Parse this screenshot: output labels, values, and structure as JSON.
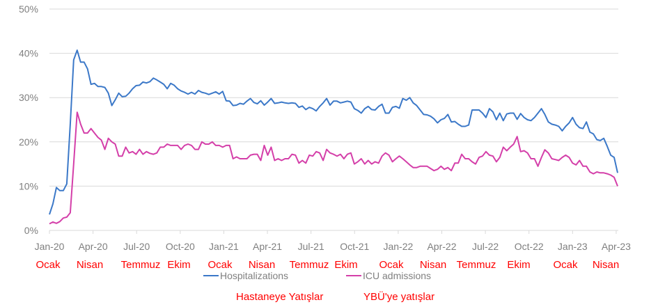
{
  "chart_data": {
    "type": "line",
    "title": "",
    "xlabel": "",
    "ylabel": "",
    "ylim": [
      0,
      50
    ],
    "y_ticks": [
      "0%",
      "10%",
      "20%",
      "30%",
      "40%",
      "50%"
    ],
    "y_tick_values": [
      0,
      10,
      20,
      30,
      40,
      50
    ],
    "x_ticks": [
      "Jan-20",
      "Apr-20",
      "Jul-20",
      "Oct-20",
      "Jan-21",
      "Apr-21",
      "Jul-21",
      "Oct-21",
      "Jan-22",
      "Apr-22",
      "Jul-22",
      "Oct-22",
      "Jan-23",
      "Apr-23"
    ],
    "x_range_months_from_jan20": [
      0,
      39.1
    ],
    "grid": true,
    "legend_position": "bottom",
    "series": [
      {
        "name": "Hospitalizations",
        "color": "#3b78c8",
        "values": [
          3.6,
          6,
          9.7,
          9,
          9,
          10.5,
          24,
          38.5,
          40.7,
          38,
          38,
          36.5,
          33,
          33.2,
          32.5,
          32.5,
          32.3,
          31,
          28.2,
          29.5,
          31,
          30.2,
          30.3,
          31,
          32,
          32.7,
          32.8,
          33.5,
          33.3,
          33.6,
          34.4,
          34,
          33.5,
          33,
          32,
          33.2,
          32.8,
          32,
          31.5,
          31.2,
          30.8,
          31.2,
          30.8,
          31.6,
          31.2,
          31,
          30.7,
          31,
          31.3,
          30.8,
          31.4,
          29.3,
          29.2,
          28.2,
          28.3,
          28.7,
          28.5,
          29.2,
          29.8,
          28.9,
          28.6,
          29.3,
          28.3,
          29,
          29.8,
          28.7,
          28.8,
          29,
          28.8,
          28.7,
          28.8,
          28.7,
          27.8,
          28.1,
          27.3,
          27.8,
          27.5,
          27,
          28,
          28.8,
          29.8,
          28.3,
          29.2,
          29.2,
          28.8,
          29,
          29.2,
          29,
          27.5,
          27.1,
          26.5,
          27.5,
          28,
          27.3,
          27.2,
          28,
          28.5,
          26.5,
          26.5,
          27.8,
          28,
          27.6,
          29.8,
          29.4,
          30,
          28.8,
          28.2,
          27.2,
          26.2,
          26.1,
          25.8,
          25.2,
          24.3,
          25,
          25.3,
          26.2,
          24.5,
          24.6,
          24,
          23.5,
          23.5,
          23.8,
          27.2,
          27.2,
          27.2,
          26.5,
          25.5,
          27.5,
          26.8,
          25,
          26.5,
          24.8,
          26.3,
          26.5,
          26.5,
          25.1,
          26.4,
          25.5,
          25,
          24.8,
          25.5,
          26.5,
          27.5,
          26.2,
          24.5,
          24,
          23.8,
          23.5,
          22.5,
          23.5,
          24.3,
          25.5,
          24,
          23.2,
          23,
          24.5,
          22.2,
          21.8,
          20.5,
          20.3,
          20.8,
          19,
          17,
          16.5,
          13
        ]
      },
      {
        "name": "ICU admissions",
        "color": "#d43fa9",
        "values": [
          1.5,
          1.9,
          1.6,
          2,
          2.8,
          3,
          4,
          15,
          26.7,
          24,
          22,
          22,
          23,
          22,
          21,
          20.4,
          18.3,
          20.8,
          20,
          19.5,
          16.8,
          16.8,
          18.8,
          17.5,
          17.8,
          17.2,
          18.3,
          17.2,
          17.8,
          17.4,
          17.2,
          17.5,
          18.8,
          18.8,
          19.5,
          19.2,
          19.2,
          19.2,
          18.3,
          19.2,
          19.5,
          19.2,
          18.3,
          18.3,
          20,
          19.5,
          19.5,
          20,
          19.2,
          19.2,
          18.8,
          19.2,
          19.2,
          16.2,
          16.6,
          16.2,
          16.2,
          16.2,
          17,
          17.2,
          17.2,
          15.8,
          19.2,
          17,
          18.8,
          15.8,
          16.2,
          15.8,
          16.2,
          16.2,
          17.2,
          17,
          15.2,
          15.8,
          15.2,
          17,
          16.8,
          17.8,
          17.5,
          15.8,
          18.3,
          17.5,
          17.2,
          16.8,
          17.2,
          16.2,
          17.2,
          17.5,
          15,
          15.5,
          16.2,
          15,
          15.8,
          15,
          15.5,
          15.2,
          16.8,
          17.5,
          17,
          15.5,
          16.2,
          16.8,
          16.2,
          15.5,
          14.8,
          14.2,
          14.2,
          14.5,
          14.5,
          14.5,
          14,
          13.5,
          13.8,
          14.5,
          13.8,
          14.2,
          13.5,
          15.2,
          15.2,
          17.2,
          16.2,
          16.2,
          15.5,
          15,
          16.5,
          16.8,
          17.8,
          17,
          16.8,
          15.5,
          16.5,
          18.8,
          18,
          18.8,
          19.5,
          21.2,
          17.8,
          18,
          17.5,
          16.2,
          16.2,
          14.5,
          16.5,
          18.2,
          17.5,
          16.2,
          16,
          15.8,
          16.5,
          17,
          16.5,
          15.2,
          14.8,
          15.8,
          14.5,
          14.5,
          13.2,
          12.8,
          13.2,
          13,
          13,
          12.8,
          12.5,
          12,
          10
        ]
      }
    ],
    "annotations": {
      "month_labels_tr": [
        "Ocak",
        "Nisan",
        "Temmuz",
        "Ekim",
        "Ocak",
        "Nisan",
        "Temmuz",
        "Ekim",
        "Ocak",
        "Nisan",
        "Temmuz",
        "Ekim",
        "Ocak",
        "Nisan"
      ],
      "legend_tr": [
        "Hastaneye Yatışlar",
        "YBÜ'ye yatışlar"
      ],
      "color": "#ff0000"
    }
  }
}
